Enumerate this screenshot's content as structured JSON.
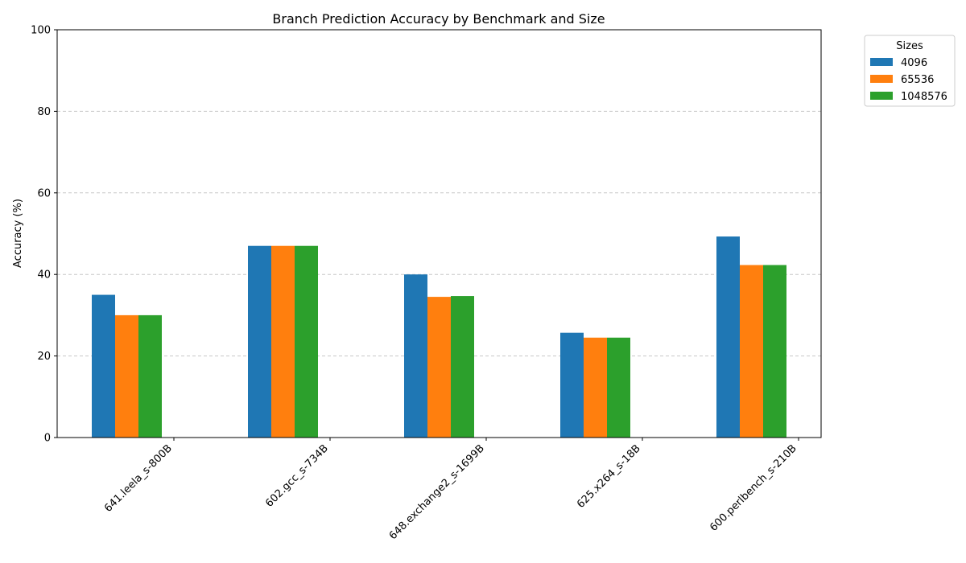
{
  "chart_data": {
    "type": "bar",
    "title": "Branch Prediction Accuracy by Benchmark and Size",
    "xlabel": "",
    "ylabel": "Accuracy (%)",
    "ylim": [
      0,
      100
    ],
    "yticks": [
      0,
      20,
      40,
      60,
      80,
      100
    ],
    "grid": "y-dashed",
    "categories": [
      "641.leela_s-800B",
      "602.gcc_s-734B",
      "648.exchange2_s-1699B",
      "625.x264_s-18B",
      "600.perlbench_s-210B"
    ],
    "series": [
      {
        "name": "4096",
        "color": "#1f77b4",
        "values": [
          35.0,
          47.0,
          40.0,
          25.7,
          49.3
        ]
      },
      {
        "name": "65536",
        "color": "#ff7f0e",
        "values": [
          30.0,
          47.0,
          34.5,
          24.5,
          42.3
        ]
      },
      {
        "name": "1048576",
        "color": "#2ca02c",
        "values": [
          30.0,
          47.0,
          34.7,
          24.5,
          42.3
        ]
      }
    ],
    "legend": {
      "title": "Sizes",
      "placement": "outside-top-right"
    }
  }
}
